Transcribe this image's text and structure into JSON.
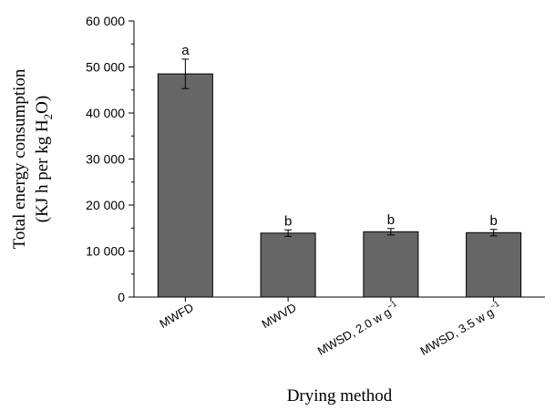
{
  "chart_data": {
    "type": "bar",
    "title": "",
    "xlabel": "Drying method",
    "ylabel_line1": "Total energy consumption",
    "ylabel_line2_parts": [
      "(KJ h per kg H",
      "2",
      "O)"
    ],
    "categories": [
      {
        "base": "MWFD",
        "sup": ""
      },
      {
        "base": "MWVD",
        "sup": ""
      },
      {
        "base": "MWSD, 2.0 w g",
        "sup": "−1"
      },
      {
        "base": "MWSD, 3.5 w g",
        "sup": "−1"
      }
    ],
    "values": [
      48500,
      13900,
      14200,
      14000
    ],
    "errors": [
      3200,
      700,
      700,
      700
    ],
    "significance": [
      "a",
      "b",
      "b",
      "b"
    ],
    "ylim": [
      0,
      60000
    ],
    "yticks": [
      0,
      10000,
      20000,
      30000,
      40000,
      50000,
      60000
    ],
    "ytick_labels": [
      "0",
      "10 000",
      "20 000",
      "30 000",
      "40 000",
      "50 000",
      "60 000"
    ],
    "bar_color": "#666666",
    "grid": false
  }
}
